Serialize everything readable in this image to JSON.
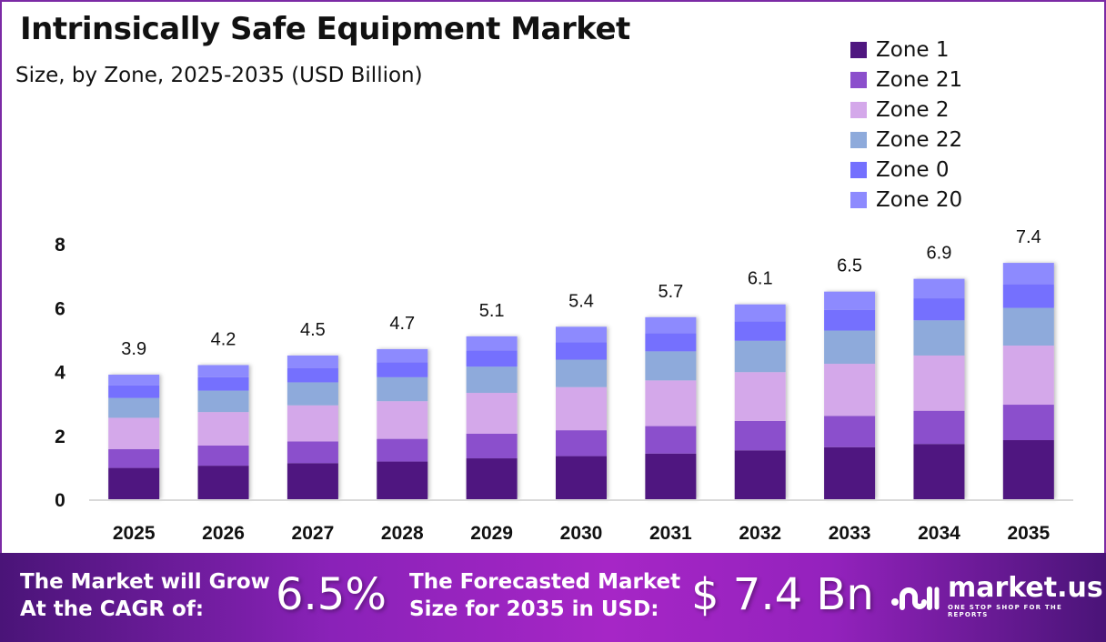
{
  "header": {
    "title": "Intrinsically Safe Equipment Market",
    "subtitle": "Size, by Zone, 2025-2035 (USD Billion)"
  },
  "legend": [
    {
      "label": "Zone 1",
      "color": "#4f1780"
    },
    {
      "label": "Zone 21",
      "color": "#8b4fcc"
    },
    {
      "label": "Zone 2",
      "color": "#d4a8ea"
    },
    {
      "label": "Zone 22",
      "color": "#8eaadb"
    },
    {
      "label": "Zone 0",
      "color": "#7470fe"
    },
    {
      "label": "Zone 20",
      "color": "#8d8afe"
    }
  ],
  "chart_data": {
    "type": "bar",
    "stacked": true,
    "title": "Intrinsically Safe Equipment Market",
    "subtitle": "Size, by Zone, 2025-2035 (USD Billion)",
    "xlabel": "",
    "ylabel": "",
    "ylim": [
      0,
      8
    ],
    "yticks": [
      0,
      2,
      4,
      6,
      8
    ],
    "grid": false,
    "legend_position": "top-right",
    "categories": [
      "2025",
      "2026",
      "2027",
      "2028",
      "2029",
      "2030",
      "2031",
      "2032",
      "2033",
      "2034",
      "2035"
    ],
    "totals": [
      3.9,
      4.2,
      4.5,
      4.7,
      5.1,
      5.4,
      5.7,
      6.1,
      6.5,
      6.9,
      7.4
    ],
    "total_labels": [
      "3.9",
      "4.2",
      "4.5",
      "4.7",
      "5.1",
      "5.4",
      "5.7",
      "6.1",
      "6.5",
      "6.9",
      "7.4"
    ],
    "series": [
      {
        "name": "Zone 1",
        "color": "#4f1780",
        "values": [
          0.98,
          1.05,
          1.13,
          1.18,
          1.28,
          1.35,
          1.43,
          1.53,
          1.63,
          1.73,
          1.85
        ]
      },
      {
        "name": "Zone 21",
        "color": "#8b4fcc",
        "values": [
          0.59,
          0.63,
          0.68,
          0.71,
          0.77,
          0.81,
          0.86,
          0.92,
          0.98,
          1.04,
          1.11
        ]
      },
      {
        "name": "Zone 2",
        "color": "#d4a8ea",
        "values": [
          0.98,
          1.05,
          1.13,
          1.18,
          1.28,
          1.35,
          1.43,
          1.53,
          1.63,
          1.73,
          1.85
        ]
      },
      {
        "name": "Zone 22",
        "color": "#8eaadb",
        "values": [
          0.62,
          0.67,
          0.72,
          0.75,
          0.82,
          0.86,
          0.91,
          0.98,
          1.04,
          1.1,
          1.18
        ]
      },
      {
        "name": "Zone 0",
        "color": "#7470fe",
        "values": [
          0.39,
          0.42,
          0.45,
          0.47,
          0.51,
          0.54,
          0.57,
          0.61,
          0.65,
          0.69,
          0.74
        ]
      },
      {
        "name": "Zone 20",
        "color": "#8d8afe",
        "values": [
          0.34,
          0.38,
          0.39,
          0.41,
          0.44,
          0.49,
          0.5,
          0.53,
          0.57,
          0.61,
          0.67
        ]
      }
    ]
  },
  "footer": {
    "cagr_text_line1": "The Market will Grow",
    "cagr_text_line2": "At the CAGR of:",
    "cagr_value": "6.5%",
    "forecast_text_line1": "The Forecasted Market",
    "forecast_text_line2": "Size for 2035 in USD:",
    "forecast_value": "$ 7.4 Bn",
    "brand_name": "market.us",
    "brand_tagline": "ONE STOP SHOP FOR THE REPORTS"
  }
}
